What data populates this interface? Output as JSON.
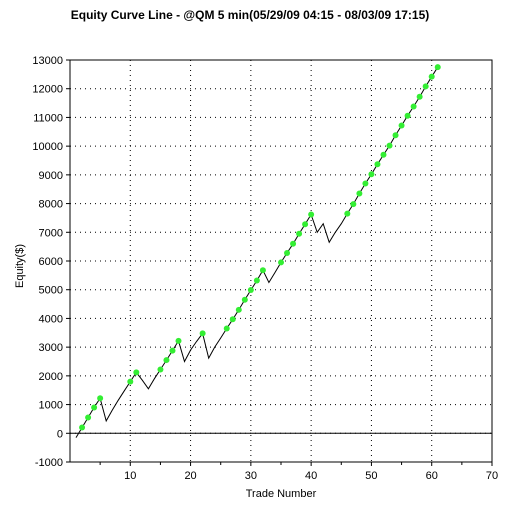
{
  "chart_data": {
    "type": "line",
    "title": "Equity Curve Line - @QM 5 min(05/29/09 04:15 - 08/03/09 17:15)",
    "xlabel": "Trade Number",
    "ylabel": "Equity($)",
    "xlim": [
      0,
      70
    ],
    "ylim": [
      -1000,
      13000
    ],
    "xticks": [
      10,
      20,
      30,
      40,
      50,
      60,
      70
    ],
    "yticks": [
      -1000,
      0,
      1000,
      2000,
      3000,
      4000,
      5000,
      6000,
      7000,
      8000,
      9000,
      10000,
      11000,
      12000,
      13000
    ],
    "grid": true,
    "legend": "none",
    "series": [
      {
        "x": [
          1,
          2,
          3,
          4,
          5,
          6,
          7,
          8,
          9,
          10,
          11,
          12,
          13,
          14,
          15,
          16,
          17,
          18,
          19,
          20,
          21,
          22,
          23,
          24,
          25,
          26,
          27,
          28,
          29,
          30,
          31,
          32,
          33,
          34,
          35,
          36,
          37,
          38,
          39,
          40,
          41,
          42,
          43,
          44,
          45,
          46,
          47,
          48,
          49,
          50,
          51,
          52,
          53,
          54,
          55,
          56,
          57,
          58,
          59,
          60,
          61
        ],
        "y": [
          -150,
          200,
          550,
          900,
          1220,
          430,
          800,
          1150,
          1480,
          1800,
          2120,
          1850,
          1550,
          1900,
          2220,
          2550,
          2880,
          3220,
          2500,
          2900,
          3200,
          3480,
          2620,
          3000,
          3320,
          3650,
          3970,
          4300,
          4650,
          4990,
          5320,
          5680,
          5250,
          5600,
          5950,
          6280,
          6600,
          6950,
          7280,
          7620,
          7000,
          7300,
          6650,
          7000,
          7300,
          7650,
          7980,
          8350,
          8700,
          9020,
          9370,
          9700,
          10020,
          10380,
          10720,
          11060,
          11380,
          11720,
          12080,
          12420,
          12750
        ],
        "marked": [
          false,
          true,
          true,
          true,
          true,
          false,
          false,
          false,
          false,
          true,
          true,
          false,
          false,
          false,
          true,
          true,
          true,
          true,
          false,
          false,
          false,
          true,
          false,
          false,
          false,
          true,
          true,
          true,
          true,
          true,
          true,
          true,
          false,
          false,
          true,
          true,
          true,
          true,
          true,
          true,
          false,
          false,
          false,
          false,
          false,
          true,
          true,
          true,
          true,
          true,
          true,
          true,
          true,
          true,
          true,
          true,
          true,
          true,
          true,
          true,
          true
        ]
      }
    ]
  },
  "colors": {
    "line": "#000000",
    "marker": "#33ee33",
    "grid": "#000000",
    "background": "#ffffff"
  }
}
